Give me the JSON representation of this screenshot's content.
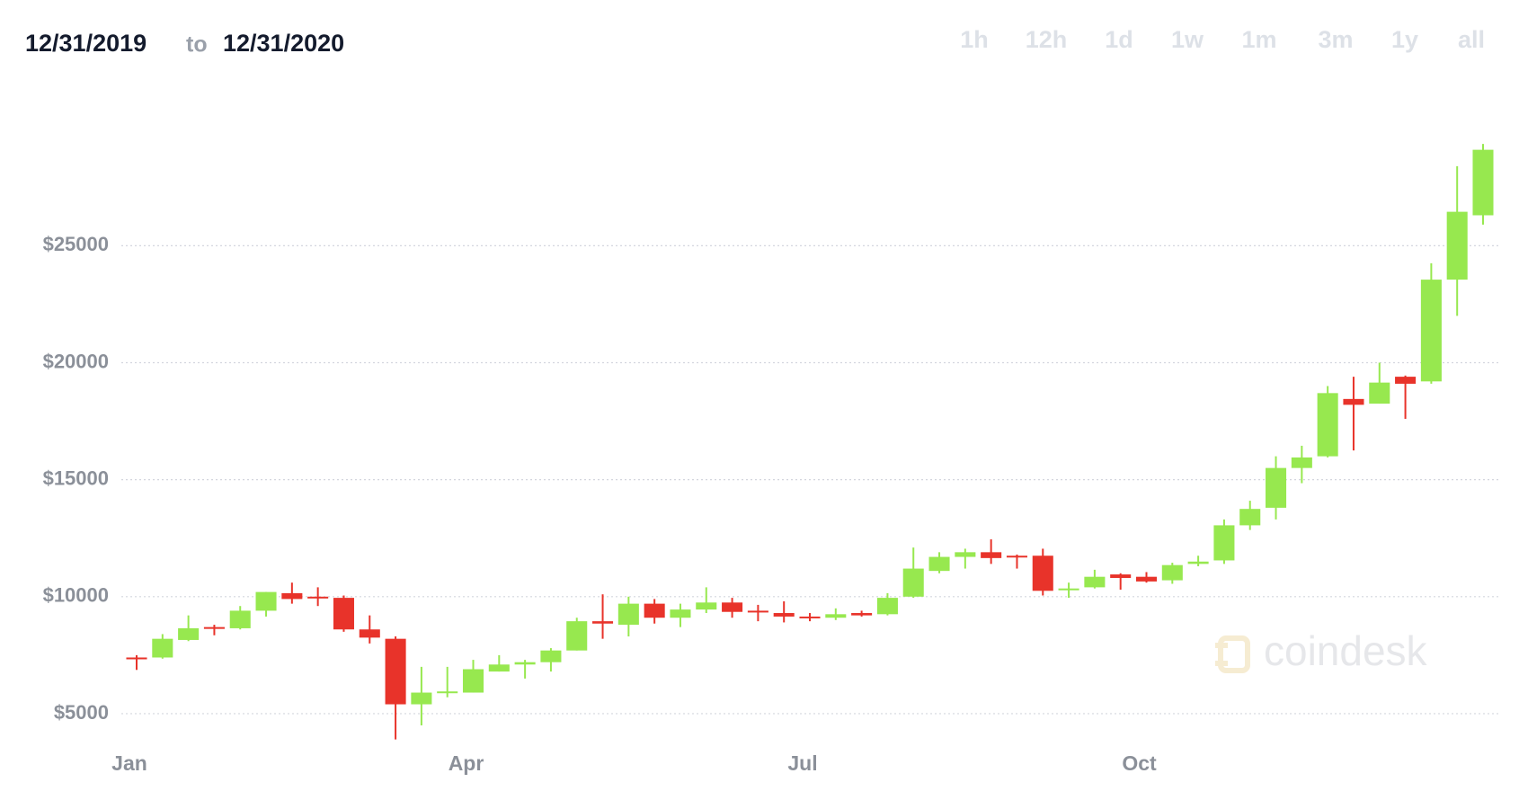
{
  "chart_data": {
    "type": "candlestick",
    "header": {
      "start_date": "12/31/2019",
      "separator": "to",
      "end_date": "12/31/2020"
    },
    "range_buttons": [
      "1h",
      "12h",
      "1d",
      "1w",
      "1m",
      "3m",
      "1y",
      "all"
    ],
    "watermark": "coindesk",
    "categories": [
      "Jan",
      null,
      null,
      null,
      null,
      null,
      null,
      null,
      null,
      null,
      null,
      null,
      null,
      "Apr",
      null,
      null,
      null,
      null,
      null,
      null,
      null,
      null,
      null,
      null,
      null,
      null,
      "Jul",
      null,
      null,
      null,
      null,
      null,
      null,
      null,
      null,
      null,
      null,
      null,
      null,
      "Oct",
      null,
      null,
      null,
      null,
      null,
      null,
      null,
      null,
      null,
      null,
      null,
      null,
      null
    ],
    "open": [
      7400,
      7400,
      8150,
      8700,
      8650,
      9400,
      10150,
      10000,
      9950,
      8600,
      8200,
      5400,
      5900,
      5900,
      6800,
      7100,
      7200,
      7700,
      8950,
      8800,
      9700,
      9100,
      9450,
      9750,
      9400,
      9300,
      9150,
      9100,
      9300,
      9250,
      10000,
      11100,
      11700,
      11900,
      11750,
      11750,
      10300,
      10400,
      10950,
      10850,
      10700,
      11400,
      11550,
      13050,
      13800,
      15500,
      16000,
      18450,
      18250,
      19400,
      19200,
      23550,
      26300
    ],
    "high": [
      7500,
      8400,
      9200,
      8800,
      9600,
      10200,
      10600,
      10400,
      10050,
      9200,
      8300,
      7000,
      7000,
      7300,
      7500,
      7300,
      7800,
      9100,
      10100,
      10000,
      9900,
      9700,
      10400,
      9950,
      9650,
      9800,
      9300,
      9500,
      9400,
      10150,
      12100,
      11900,
      12050,
      12450,
      11800,
      12050,
      10600,
      11150,
      11000,
      11050,
      11450,
      11750,
      13300,
      14100,
      16000,
      16450,
      19000,
      19400,
      20000,
      19450,
      24250,
      28400,
      29350
    ],
    "low": [
      6870,
      7350,
      8100,
      8350,
      8600,
      9150,
      9700,
      9600,
      8500,
      8000,
      3900,
      4500,
      5700,
      5900,
      6800,
      6500,
      6800,
      7700,
      8200,
      8300,
      8850,
      8700,
      9300,
      9100,
      8950,
      8900,
      8950,
      9000,
      9150,
      9200,
      9950,
      11000,
      11200,
      11400,
      11200,
      10050,
      9950,
      10350,
      10300,
      10600,
      10550,
      11300,
      11400,
      12850,
      13300,
      14850,
      15950,
      16250,
      18250,
      17600,
      19100,
      22000,
      25900
    ],
    "close": [
      7350,
      8200,
      8650,
      8650,
      9400,
      10200,
      9900,
      9950,
      8600,
      8250,
      5400,
      5900,
      5950,
      6900,
      7100,
      7200,
      7700,
      8950,
      8850,
      9700,
      9100,
      9450,
      9750,
      9350,
      9350,
      9150,
      9100,
      9250,
      9200,
      9950,
      11200,
      11700,
      11900,
      11650,
      11700,
      10250,
      10350,
      10850,
      10800,
      10650,
      11350,
      11500,
      13050,
      13750,
      15500,
      15950,
      18700,
      18200,
      19150,
      19100,
      23550,
      26450,
      29100
    ],
    "up_color": "#97e84f",
    "down_color": "#e8332a",
    "ylim": [
      3500,
      29700
    ],
    "yticks": [
      {
        "value": 5000,
        "label": "$5000"
      },
      {
        "value": 10000,
        "label": "$10000"
      },
      {
        "value": 15000,
        "label": "$15000"
      },
      {
        "value": 20000,
        "label": "$20000"
      },
      {
        "value": 25000,
        "label": "$25000"
      }
    ],
    "grid": true
  }
}
